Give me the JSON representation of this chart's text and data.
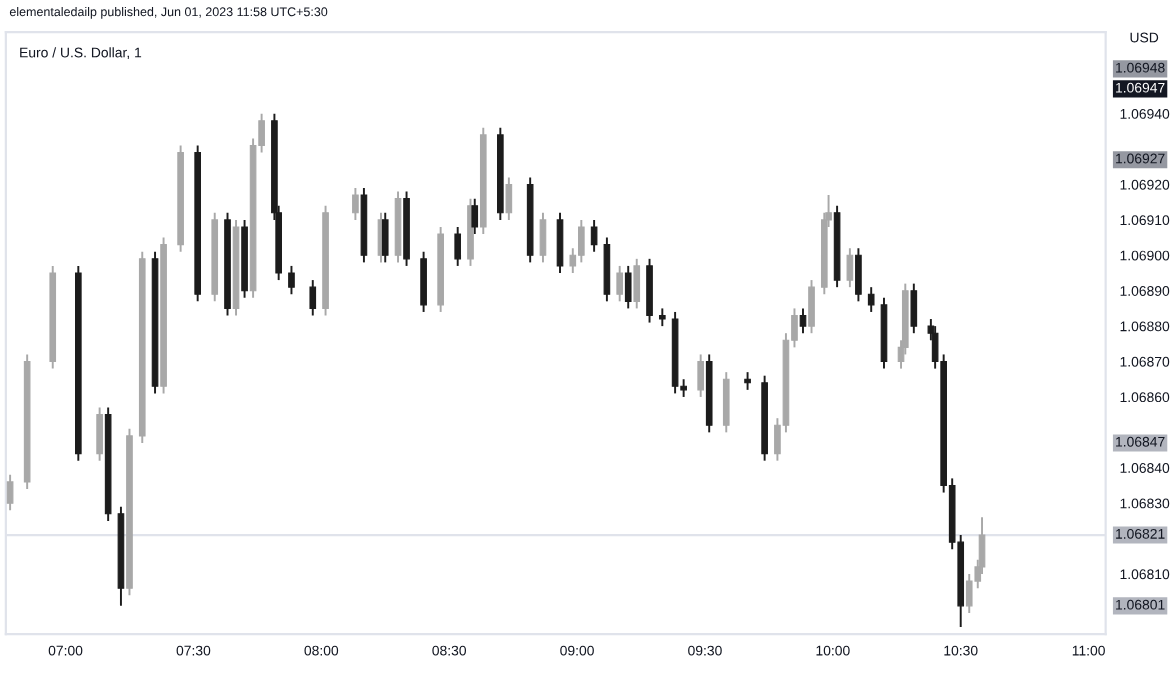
{
  "chart_data": {
    "type": "candlestick",
    "title": "Euro / U.S. Dollar, 1",
    "annotations": [
      "elementaledailp published, Jun 01, 2023 11:58 UTC+5:30",
      "1.06801",
      "1.06847",
      "1.06927",
      "1.06947",
      "1.06948"
    ],
    "ylabel": "USD",
    "colors": [
      "#a8a8a8",
      "#a8a8a8",
      "#a8a8a8",
      "#1c1c1c",
      "#a8a8a8",
      "#1c1c1c",
      "#1c1c1c",
      "#a8a8a8",
      "#a8a8a8",
      "#1c1c1c",
      "#a8a8a8",
      "#a8a8a8",
      "#1c1c1c",
      "#a8a8a8",
      "#1c1c1c",
      "#a8a8a8",
      "#1c1c1c",
      "#a8a8a8",
      "#a8a8a8",
      "#1c1c1c",
      "#1c1c1c",
      "#1c1c1c",
      "#1c1c1c",
      "#a8a8a8",
      "#a8a8a8",
      "#1c1c1c",
      "#a8a8a8",
      "#1c1c1c",
      "#a8a8a8",
      "#1c1c1c",
      "#1c1c1c",
      "#a8a8a8",
      "#1c1c1c",
      "#a8a8a8",
      "#1c1c1c",
      "#a8a8a8",
      "#1c1c1c",
      "#a8a8a8",
      "#1c1c1c",
      "#a8a8a8",
      "#1c1c1c",
      "#a8a8a8",
      "#a8a8a8",
      "#1c1c1c",
      "#1c1c1c",
      "#a8a8a8",
      "#1c1c1c",
      "#a8a8a8",
      "#1c1c1c",
      "#1c1c1c",
      "#1c1c1c",
      "#1c1c1c",
      "#a8a8a8",
      "#1c1c1c",
      "#a8a8a8",
      "#1c1c1c",
      "#1c1c1c",
      "#a8a8a8",
      "#a8a8a8",
      "#a8a8a8",
      "#1c1c1c",
      "#a8a8a8",
      "#a8a8a8",
      "#a8a8a8",
      "#1c1c1c",
      "#a8a8a8",
      "#1c1c1c",
      "#1c1c1c",
      "#1c1c1c",
      "#a8a8a8",
      "#a8a8a8",
      "#1c1c1c",
      "#1c1c1c",
      "#1c1c1c",
      "#1c1c1c",
      "#1c1c1c",
      "#1c1c1c",
      "#a8a8a8",
      "#a8a8a8",
      "#a8a8a8"
    ],
    "x": [
      "2023-06-01T06:47",
      "2023-06-01T06:51",
      "2023-06-01T06:57",
      "2023-06-01T07:03",
      "2023-06-01T07:08",
      "2023-06-01T07:10",
      "2023-06-01T07:13",
      "2023-06-01T07:15",
      "2023-06-01T07:18",
      "2023-06-01T07:21",
      "2023-06-01T07:23",
      "2023-06-01T07:27",
      "2023-06-01T07:31",
      "2023-06-01T07:35",
      "2023-06-01T07:38",
      "2023-06-01T07:40",
      "2023-06-01T07:42",
      "2023-06-01T07:44",
      "2023-06-01T07:46",
      "2023-06-01T07:49",
      "2023-06-01T07:50",
      "2023-06-01T07:53",
      "2023-06-01T07:58",
      "2023-06-01T08:01",
      "2023-06-01T08:08",
      "2023-06-01T08:10",
      "2023-06-01T08:14",
      "2023-06-01T08:15",
      "2023-06-01T08:18",
      "2023-06-01T08:20",
      "2023-06-01T08:24",
      "2023-06-01T08:28",
      "2023-06-01T08:32",
      "2023-06-01T08:35",
      "2023-06-01T08:36",
      "2023-06-01T08:38",
      "2023-06-01T08:42",
      "2023-06-01T08:44",
      "2023-06-01T08:49",
      "2023-06-01T08:52",
      "2023-06-01T08:56",
      "2023-06-01T08:59",
      "2023-06-01T09:01",
      "2023-06-01T09:04",
      "2023-06-01T09:07",
      "2023-06-01T09:10",
      "2023-06-01T09:12",
      "2023-06-01T09:14",
      "2023-06-01T09:17",
      "2023-06-01T09:20",
      "2023-06-01T09:23",
      "2023-06-01T09:25",
      "2023-06-01T09:29",
      "2023-06-01T09:31",
      "2023-06-01T09:35",
      "2023-06-01T09:40",
      "2023-06-01T09:44",
      "2023-06-01T09:47",
      "2023-06-01T09:49",
      "2023-06-01T09:51",
      "2023-06-01T09:53",
      "2023-06-01T09:55",
      "2023-06-01T09:58",
      "2023-06-01T09:59",
      "2023-06-01T10:01",
      "2023-06-01T10:04",
      "2023-06-01T10:06",
      "2023-06-01T10:09",
      "2023-06-01T10:12",
      "2023-06-01T10:16",
      "2023-06-01T10:17",
      "2023-06-01T10:19",
      "2023-06-01T10:23",
      "2023-06-01T10:24",
      "2023-06-01T10:26",
      "2023-06-01T10:28",
      "2023-06-01T10:30",
      "2023-06-01T10:32",
      "2023-06-01T10:34",
      "2023-06-01T10:35"
    ],
    "ohlc": [
      [
        1.0683,
        1.06838,
        1.06828,
        1.06836
      ],
      [
        1.06836,
        1.06872,
        1.06834,
        1.0687
      ],
      [
        1.0687,
        1.06897,
        1.06868,
        1.06895
      ],
      [
        1.06895,
        1.06897,
        1.06842,
        1.06844
      ],
      [
        1.06844,
        1.06857,
        1.06842,
        1.06855
      ],
      [
        1.06855,
        1.06857,
        1.06825,
        1.06827
      ],
      [
        1.06827,
        1.06829,
        1.06801,
        1.06806
      ],
      [
        1.06806,
        1.06851,
        1.06804,
        1.06849
      ],
      [
        1.06849,
        1.06901,
        1.06847,
        1.06899
      ],
      [
        1.06899,
        1.06901,
        1.06861,
        1.06863
      ],
      [
        1.06863,
        1.06905,
        1.06861,
        1.06903
      ],
      [
        1.06903,
        1.06931,
        1.06901,
        1.06929
      ],
      [
        1.06929,
        1.06931,
        1.06887,
        1.06889
      ],
      [
        1.06889,
        1.06912,
        1.06887,
        1.0691
      ],
      [
        1.0691,
        1.06912,
        1.06883,
        1.06885
      ],
      [
        1.06885,
        1.0691,
        1.06883,
        1.06908
      ],
      [
        1.06908,
        1.0691,
        1.06888,
        1.0689
      ],
      [
        1.0689,
        1.06933,
        1.06888,
        1.06931
      ],
      [
        1.06931,
        1.0694,
        1.06929,
        1.06938
      ],
      [
        1.06938,
        1.0694,
        1.0691,
        1.06912
      ],
      [
        1.06912,
        1.06914,
        1.06893,
        1.06895
      ],
      [
        1.06895,
        1.06897,
        1.06889,
        1.06891
      ],
      [
        1.06891,
        1.06893,
        1.06883,
        1.06885
      ],
      [
        1.06885,
        1.06914,
        1.06883,
        1.06912
      ],
      [
        1.06912,
        1.06919,
        1.0691,
        1.06917
      ],
      [
        1.06917,
        1.06919,
        1.06898,
        1.069
      ],
      [
        1.069,
        1.06912,
        1.06898,
        1.0691
      ],
      [
        1.0691,
        1.06912,
        1.06898,
        1.069
      ],
      [
        1.069,
        1.06918,
        1.06898,
        1.06916
      ],
      [
        1.06916,
        1.06918,
        1.06897,
        1.06899
      ],
      [
        1.06899,
        1.06901,
        1.06884,
        1.06886
      ],
      [
        1.06886,
        1.06908,
        1.06884,
        1.06906
      ],
      [
        1.06906,
        1.06908,
        1.06897,
        1.06899
      ],
      [
        1.06899,
        1.06916,
        1.06897,
        1.06914
      ],
      [
        1.06914,
        1.06916,
        1.06906,
        1.06908
      ],
      [
        1.06908,
        1.06936,
        1.06906,
        1.06934
      ],
      [
        1.06934,
        1.06936,
        1.0691,
        1.06912
      ],
      [
        1.06912,
        1.06922,
        1.0691,
        1.0692
      ],
      [
        1.0692,
        1.06922,
        1.06898,
        1.069
      ],
      [
        1.069,
        1.06912,
        1.06898,
        1.0691
      ],
      [
        1.0691,
        1.06912,
        1.06895,
        1.06897
      ],
      [
        1.06897,
        1.06902,
        1.06895,
        1.069
      ],
      [
        1.069,
        1.0691,
        1.06898,
        1.06908
      ],
      [
        1.06908,
        1.0691,
        1.06901,
        1.06903
      ],
      [
        1.06903,
        1.06905,
        1.06887,
        1.06889
      ],
      [
        1.06889,
        1.06897,
        1.06887,
        1.06895
      ],
      [
        1.06895,
        1.06897,
        1.06885,
        1.06887
      ],
      [
        1.06887,
        1.06899,
        1.06885,
        1.06897
      ],
      [
        1.06897,
        1.06899,
        1.06881,
        1.06883
      ],
      [
        1.06883,
        1.06885,
        1.0688,
        1.06882
      ],
      [
        1.06882,
        1.06884,
        1.06861,
        1.06863
      ],
      [
        1.06863,
        1.06865,
        1.0686,
        1.06862
      ],
      [
        1.06862,
        1.06872,
        1.0686,
        1.0687
      ],
      [
        1.0687,
        1.06872,
        1.0685,
        1.06852
      ],
      [
        1.06852,
        1.06867,
        1.0685,
        1.06865
      ],
      [
        1.06865,
        1.06867,
        1.06862,
        1.06864
      ],
      [
        1.06864,
        1.06866,
        1.06842,
        1.06844
      ],
      [
        1.06844,
        1.06854,
        1.06842,
        1.06852
      ],
      [
        1.06852,
        1.06878,
        1.0685,
        1.06876
      ],
      [
        1.06876,
        1.06885,
        1.06874,
        1.06883
      ],
      [
        1.06883,
        1.06885,
        1.06878,
        1.0688
      ],
      [
        1.0688,
        1.06893,
        1.06878,
        1.06891
      ],
      [
        1.06891,
        1.06912,
        1.06889,
        1.0691
      ],
      [
        1.0691,
        1.06917,
        1.06908,
        1.06912
      ],
      [
        1.06912,
        1.06914,
        1.06891,
        1.06893
      ],
      [
        1.06893,
        1.06902,
        1.06891,
        1.069
      ],
      [
        1.069,
        1.06902,
        1.06887,
        1.06889
      ],
      [
        1.06889,
        1.06891,
        1.06884,
        1.06886
      ],
      [
        1.06886,
        1.06888,
        1.06868,
        1.0687
      ],
      [
        1.0687,
        1.06876,
        1.06868,
        1.06874
      ],
      [
        1.06874,
        1.06892,
        1.06872,
        1.0689
      ],
      [
        1.0689,
        1.06892,
        1.06878,
        1.0688
      ],
      [
        1.0688,
        1.06882,
        1.06876,
        1.06878
      ],
      [
        1.06878,
        1.0688,
        1.06868,
        1.0687
      ],
      [
        1.0687,
        1.06872,
        1.06833,
        1.06835
      ],
      [
        1.06835,
        1.06837,
        1.06817,
        1.06819
      ],
      [
        1.06819,
        1.06821,
        1.06795,
        1.06801
      ],
      [
        1.06801,
        1.0681,
        1.06799,
        1.06808
      ],
      [
        1.06808,
        1.06814,
        1.06806,
        1.06812
      ],
      [
        1.06812,
        1.06826,
        1.0681,
        1.06821
      ]
    ],
    "xlim": [
      "2023-06-01T06:46",
      "2023-06-01T11:04"
    ],
    "xticks": [
      {
        "value": "2023-06-01T07:00",
        "label": "07:00"
      },
      {
        "value": "2023-06-01T07:30",
        "label": "07:30"
      },
      {
        "value": "2023-06-01T08:00",
        "label": "08:00"
      },
      {
        "value": "2023-06-01T08:30",
        "label": "08:30"
      },
      {
        "value": "2023-06-01T09:00",
        "label": "09:00"
      },
      {
        "value": "2023-06-01T09:30",
        "label": "09:30"
      },
      {
        "value": "2023-06-01T10:00",
        "label": "10:00"
      },
      {
        "value": "2023-06-01T10:30",
        "label": "10:30"
      },
      {
        "value": "2023-06-01T11:00",
        "label": "11:00"
      }
    ],
    "ylim": [
      1.06793,
      1.06963
    ],
    "yticks": [
      {
        "value": 1.0681,
        "label": "1.06810"
      },
      {
        "value": 1.0683,
        "label": "1.06830"
      },
      {
        "value": 1.0684,
        "label": "1.06840"
      },
      {
        "value": 1.0686,
        "label": "1.06860"
      },
      {
        "value": 1.0687,
        "label": "1.06870"
      },
      {
        "value": 1.0688,
        "label": "1.06880"
      },
      {
        "value": 1.0689,
        "label": "1.06890"
      },
      {
        "value": 1.069,
        "label": "1.06900"
      },
      {
        "value": 1.0691,
        "label": "1.06910"
      },
      {
        "value": 1.0692,
        "label": "1.06920"
      },
      {
        "value": 1.0694,
        "label": "1.06940"
      }
    ],
    "ref_lines": [
      {
        "axis": "y",
        "value": 1.06821,
        "label": "1.06821",
        "color": "#e0e3eb",
        "line_style": "solid"
      }
    ],
    "grid": false
  }
}
